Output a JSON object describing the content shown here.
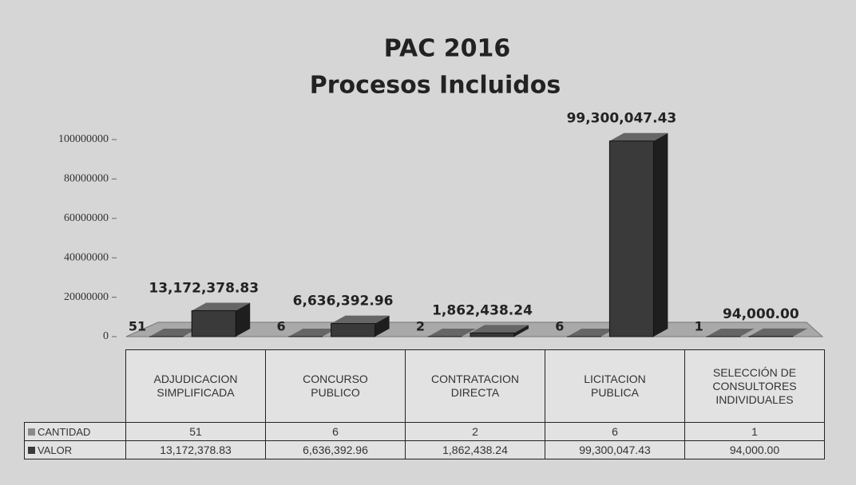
{
  "chart_data": {
    "type": "bar3d",
    "title": "PAC 2016",
    "subtitle": "Procesos Incluidos",
    "categories": [
      "ADJUDICACION SIMPLIFICADA",
      "CONCURSO PUBLICO",
      "CONTRATACION DIRECTA",
      "LICITACION PUBLICA",
      "SELECCIÓN DE CONSULTORES INDIVIDUALES"
    ],
    "series": [
      {
        "name": "CANTIDAD",
        "color": "#8a8a8a",
        "values": [
          51,
          6,
          2,
          6,
          1
        ]
      },
      {
        "name": "VALOR",
        "color": "#3a3a3a",
        "values": [
          13172378.83,
          6636392.96,
          1862438.24,
          99300047.43,
          94000
        ],
        "value_labels": [
          "13,172,378.83",
          "6,636,392.96",
          "1,862,438.24",
          "99,300,047.43",
          "94,000.00"
        ]
      }
    ],
    "ylim": [
      0,
      100000000
    ],
    "yticks": [
      0,
      20000000,
      40000000,
      60000000,
      80000000,
      100000000
    ]
  }
}
